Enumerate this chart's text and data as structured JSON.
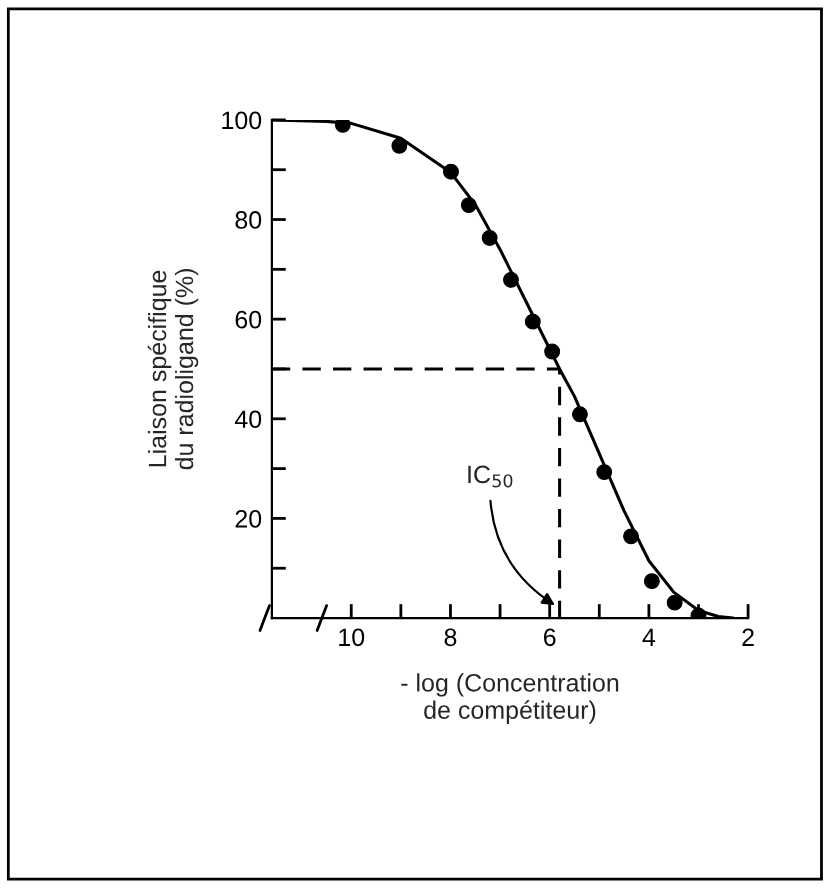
{
  "chart_data": {
    "type": "scatter",
    "xlabel": "- log (Concentration\nde compétiteur)",
    "ylabel": "Liaison spécifique\ndu radioligand (%)",
    "series": [
      {
        "color": "#000000",
        "marker": "circle",
        "x": [
          10.17,
          9.03,
          7.99,
          7.63,
          7.21,
          6.78,
          6.34,
          5.95,
          5.39,
          4.9,
          4.36,
          3.94,
          3.48,
          3.0
        ],
        "values": [
          99,
          94.8,
          89.6,
          82.9,
          76.3,
          67.9,
          59.5,
          53.5,
          40.9,
          29.3,
          16.4,
          7.4,
          3.1,
          0.5
        ]
      },
      {
        "type": "line",
        "color": "#000000",
        "marker": "none",
        "line_style": "solid",
        "x": [
          11.6,
          10.5,
          10,
          9,
          8,
          7.5,
          7,
          6.5,
          6,
          5.8,
          5.5,
          5,
          4.5,
          4,
          3.5,
          3,
          2.6,
          2.3
        ],
        "values": [
          100,
          99.7,
          99.3,
          96.3,
          89.5,
          83,
          74,
          64,
          54,
          50,
          44.5,
          33,
          21.5,
          11.5,
          5.2,
          1.5,
          0.3,
          0
        ]
      },
      {
        "type": "line",
        "color": "#000000",
        "marker": "none",
        "line_style": "dashed",
        "x": [
          11.6,
          5.8,
          5.8
        ],
        "values": [
          50,
          50,
          0
        ]
      }
    ],
    "annotations": [
      {
        "text": "IC$_{50}$",
        "x": 5.8,
        "y": 2
      }
    ],
    "xlim": [
      11.6,
      2
    ],
    "ylim": [
      0,
      100
    ],
    "xticks": [
      10,
      {
        "value": 9,
        "label": null
      },
      8,
      {
        "value": 7,
        "label": null
      },
      6,
      {
        "value": 5,
        "label": null
      },
      4,
      {
        "value": 3,
        "label": null
      },
      2
    ],
    "yticks": [
      {
        "value": 10,
        "label": null
      },
      20,
      {
        "value": 30,
        "label": null
      },
      40,
      {
        "value": 50,
        "label": null
      },
      60,
      {
        "value": 70,
        "label": null
      },
      80,
      {
        "value": 90,
        "label": null
      },
      100
    ],
    "grid": false,
    "legend": false
  }
}
